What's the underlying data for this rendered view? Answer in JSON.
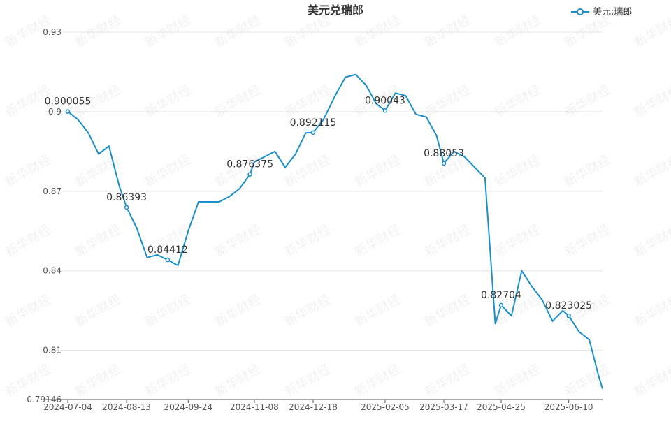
{
  "chart_data": {
    "type": "line",
    "title": "美元兑瑞郎",
    "watermark": "新华财经",
    "legend": {
      "position": "top-right"
    },
    "series": [
      {
        "name": "美元:瑞郎",
        "color": "#1a8fcb",
        "x": [
          "2024-07-04",
          "2024-07-11",
          "2024-07-18",
          "2024-07-25",
          "2024-08-01",
          "2024-08-08",
          "2024-08-13",
          "2024-08-20",
          "2024-08-27",
          "2024-09-03",
          "2024-09-10",
          "2024-09-17",
          "2024-09-24",
          "2024-10-01",
          "2024-10-08",
          "2024-10-15",
          "2024-10-22",
          "2024-10-29",
          "2024-11-05",
          "2024-11-08",
          "2024-11-15",
          "2024-11-22",
          "2024-11-29",
          "2024-12-06",
          "2024-12-13",
          "2024-12-18",
          "2024-12-25",
          "2025-01-02",
          "2025-01-09",
          "2025-01-16",
          "2025-01-23",
          "2025-01-30",
          "2025-02-05",
          "2025-02-12",
          "2025-02-19",
          "2025-02-26",
          "2025-03-05",
          "2025-03-12",
          "2025-03-17",
          "2025-03-24",
          "2025-03-31",
          "2025-04-07",
          "2025-04-14",
          "2025-04-21",
          "2025-04-25",
          "2025-05-02",
          "2025-05-09",
          "2025-05-16",
          "2025-05-23",
          "2025-05-30",
          "2025-06-06",
          "2025-06-10",
          "2025-06-17",
          "2025-06-24",
          "2025-06-30",
          "2025-07-03"
        ],
        "y": [
          0.900055,
          0.897,
          0.892,
          0.884,
          0.887,
          0.872,
          0.86393,
          0.856,
          0.845,
          0.846,
          0.84412,
          0.842,
          0.855,
          0.866,
          0.866,
          0.866,
          0.868,
          0.871,
          0.876375,
          0.881,
          0.883,
          0.885,
          0.879,
          0.884,
          0.892,
          0.892115,
          0.897,
          0.906,
          0.913,
          0.914,
          0.91,
          0.903,
          0.90043,
          0.907,
          0.906,
          0.899,
          0.898,
          0.891,
          0.88053,
          0.885,
          0.883,
          0.879,
          0.875,
          0.82,
          0.82704,
          0.823,
          0.84,
          0.834,
          0.829,
          0.821,
          0.825,
          0.823025,
          0.817,
          0.814,
          0.801,
          0.7955
        ]
      }
    ],
    "point_labels": [
      {
        "x": "2024-07-04",
        "label": "0.900055"
      },
      {
        "x": "2024-08-13",
        "label": "0.86393"
      },
      {
        "x": "2024-09-10",
        "label": "0.84412"
      },
      {
        "x": "2024-11-05",
        "label": "0.876375"
      },
      {
        "x": "2024-12-18",
        "label": "0.892115"
      },
      {
        "x": "2025-02-05",
        "label": "0.90043"
      },
      {
        "x": "2025-03-17",
        "label": "0.88053"
      },
      {
        "x": "2025-04-25",
        "label": "0.82704"
      },
      {
        "x": "2025-06-10",
        "label": "0.823025"
      }
    ],
    "xaxis": {
      "min": "2024-07-04",
      "max": "2025-07-03",
      "ticks": [
        "2024-07-04",
        "2024-08-13",
        "2024-09-24",
        "2024-11-08",
        "2024-12-18",
        "2025-02-05",
        "2025-03-17",
        "2025-04-25",
        "2025-06-10"
      ]
    },
    "yaxis": {
      "ylim": [
        0.79146,
        0.935
      ],
      "ticks": [
        0.79146,
        0.81,
        0.84,
        0.87,
        0.9,
        0.93
      ],
      "tick_labels": [
        "0.79146",
        "0.81",
        "0.84",
        "0.87",
        "0.9",
        "0.93"
      ],
      "grid": true
    }
  }
}
